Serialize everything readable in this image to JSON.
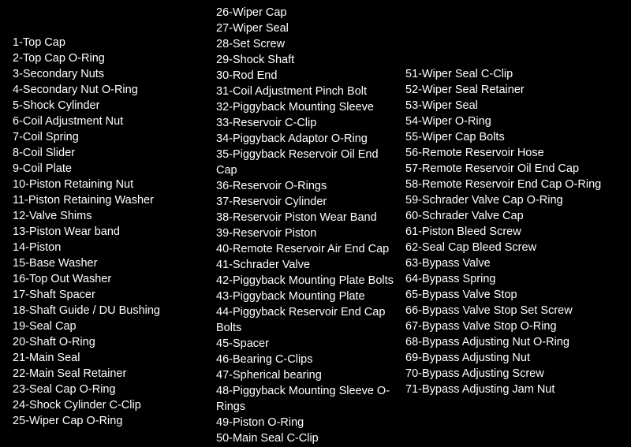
{
  "background_color": "#000000",
  "text_color": "#ffffff",
  "font_family": "Arial",
  "font_size_pt": 11,
  "columns": {
    "col1": [
      {
        "n": 1,
        "label": "Top Cap"
      },
      {
        "n": 2,
        "label": "Top Cap O-Ring"
      },
      {
        "n": 3,
        "label": "Secondary Nuts"
      },
      {
        "n": 4,
        "label": "Secondary Nut O-Ring"
      },
      {
        "n": 5,
        "label": "Shock Cylinder"
      },
      {
        "n": 6,
        "label": "Coil Adjustment Nut"
      },
      {
        "n": 7,
        "label": "Coil Spring"
      },
      {
        "n": 8,
        "label": "Coil Slider"
      },
      {
        "n": 9,
        "label": "Coil Plate"
      },
      {
        "n": 10,
        "label": "Piston Retaining Nut"
      },
      {
        "n": 11,
        "label": "Piston Retaining Washer"
      },
      {
        "n": 12,
        "label": "Valve Shims"
      },
      {
        "n": 13,
        "label": "Piston Wear band"
      },
      {
        "n": 14,
        "label": "Piston"
      },
      {
        "n": 15,
        "label": "Base Washer"
      },
      {
        "n": 16,
        "label": "Top Out Washer"
      },
      {
        "n": 17,
        "label": "Shaft Spacer"
      },
      {
        "n": 18,
        "label": "Shaft Guide / DU Bushing"
      },
      {
        "n": 19,
        "label": "Seal Cap"
      },
      {
        "n": 20,
        "label": "Shaft O-Ring"
      },
      {
        "n": 21,
        "label": "Main Seal"
      },
      {
        "n": 22,
        "label": "Main Seal Retainer"
      },
      {
        "n": 23,
        "label": "Seal Cap O-Ring"
      },
      {
        "n": 24,
        "label": "Shock Cylinder C-Clip"
      },
      {
        "n": 25,
        "label": "Wiper Cap O-Ring"
      }
    ],
    "col2": [
      {
        "n": 26,
        "label": "Wiper Cap"
      },
      {
        "n": 27,
        "label": "Wiper Seal"
      },
      {
        "n": 28,
        "label": "Set Screw"
      },
      {
        "n": 29,
        "label": "Shock Shaft"
      },
      {
        "n": 30,
        "label": "Rod End"
      },
      {
        "n": 31,
        "label": "Coil Adjustment Pinch Bolt"
      },
      {
        "n": 32,
        "label": "Piggyback Mounting Sleeve"
      },
      {
        "n": 33,
        "label": "Reservoir C-Clip"
      },
      {
        "n": 34,
        "label": "Piggyback Adaptor O-Ring"
      },
      {
        "n": 35,
        "label": "Piggyback Reservoir Oil End Cap"
      },
      {
        "n": 36,
        "label": "Reservoir O-Rings"
      },
      {
        "n": 37,
        "label": "Reservoir Cylinder"
      },
      {
        "n": 38,
        "label": "Reservoir Piston Wear Band"
      },
      {
        "n": 39,
        "label": "Reservoir Piston"
      },
      {
        "n": 40,
        "label": "Remote Reservoir Air End Cap"
      },
      {
        "n": 41,
        "label": "Schrader Valve"
      },
      {
        "n": 42,
        "label": "Piggyback Mounting Plate Bolts"
      },
      {
        "n": 43,
        "label": "Piggyback Mounting Plate"
      },
      {
        "n": 44,
        "label": "Piggyback Reservoir End Cap Bolts"
      },
      {
        "n": 45,
        "label": "Spacer"
      },
      {
        "n": 46,
        "label": "Bearing C-Clips"
      },
      {
        "n": 47,
        "label": "Spherical bearing"
      },
      {
        "n": 48,
        "label": "Piggyback Mounting Sleeve O-Rings"
      },
      {
        "n": 49,
        "label": "Piston O-Ring"
      },
      {
        "n": 50,
        "label": "Main Seal C-Clip"
      }
    ],
    "col3": [
      {
        "n": 51,
        "label": "Wiper Seal C-Clip"
      },
      {
        "n": 52,
        "label": "Wiper Seal Retainer"
      },
      {
        "n": 53,
        "label": "Wiper Seal"
      },
      {
        "n": 54,
        "label": "Wiper O-Ring"
      },
      {
        "n": 55,
        "label": "Wiper Cap Bolts"
      },
      {
        "n": 56,
        "label": "Remote Reservoir Hose"
      },
      {
        "n": 57,
        "label": "Remote Reservoir Oil End Cap"
      },
      {
        "n": 58,
        "label": "Remote Reservoir End Cap O-Ring"
      },
      {
        "n": 59,
        "label": "Schrader Valve Cap O-Ring"
      },
      {
        "n": 60,
        "label": "Schrader Valve Cap"
      },
      {
        "n": 61,
        "label": "Piston Bleed Screw"
      },
      {
        "n": 62,
        "label": "Seal Cap Bleed Screw"
      },
      {
        "n": 63,
        "label": "Bypass Valve"
      },
      {
        "n": 64,
        "label": "Bypass Spring"
      },
      {
        "n": 65,
        "label": "Bypass Valve Stop"
      },
      {
        "n": 66,
        "label": "Bypass Valve Stop Set Screw"
      },
      {
        "n": 67,
        "label": "Bypass Valve Stop O-Ring"
      },
      {
        "n": 68,
        "label": "Bypass Adjusting Nut O-Ring"
      },
      {
        "n": 69,
        "label": "Bypass Adjusting Nut"
      },
      {
        "n": 70,
        "label": "Bypass Adjusting Screw"
      },
      {
        "n": 71,
        "label": "Bypass Adjusting Jam Nut"
      }
    ]
  }
}
